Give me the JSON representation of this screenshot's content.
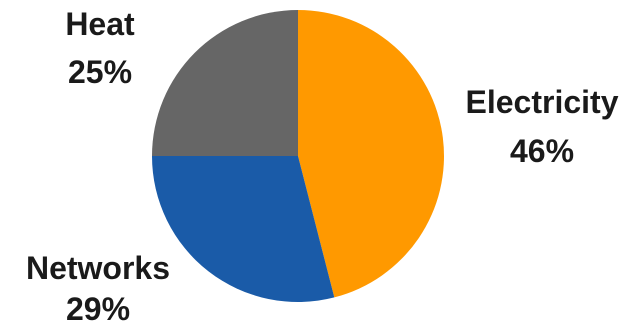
{
  "chart_data": {
    "type": "pie",
    "title": "",
    "slices": [
      {
        "label": "Electricity",
        "value": 46,
        "value_label": "46%",
        "color": "#FF9900"
      },
      {
        "label": "Networks",
        "value": 29,
        "value_label": "29%",
        "color": "#1A5BA8"
      },
      {
        "label": "Heat",
        "value": 25,
        "value_label": "25%",
        "color": "#666666"
      }
    ],
    "start_angle": "12 o'clock",
    "direction": "clockwise",
    "legend": "none",
    "labels": "outside slices, name above percentage"
  }
}
